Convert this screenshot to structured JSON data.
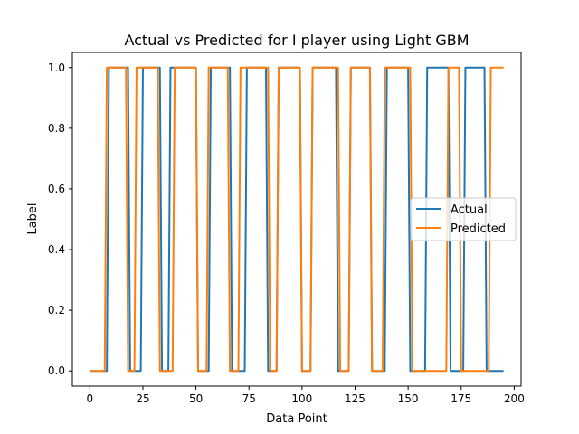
{
  "chart_data": {
    "type": "line",
    "title": "Actual vs Predicted for I player using Light GBM",
    "xlabel": "Data Point",
    "ylabel": "Label",
    "xlim": [
      -8.25,
      203.25
    ],
    "ylim": [
      -0.05,
      1.05
    ],
    "xticks": [
      0,
      25,
      50,
      75,
      100,
      125,
      150,
      175,
      200
    ],
    "yticks": [
      0.0,
      0.2,
      0.4,
      0.6,
      0.8,
      1.0
    ],
    "ytick_labels": [
      "0.0",
      "0.2",
      "0.4",
      "0.6",
      "0.8",
      "1.0"
    ],
    "grid": false,
    "legend_position": "center-right",
    "series": [
      {
        "name": "Actual",
        "color": "#1f77b4",
        "x": [
          0,
          8,
          9,
          18,
          19,
          24,
          25,
          33,
          34,
          37,
          38,
          50,
          51,
          56,
          57,
          66,
          67,
          73,
          74,
          83,
          84,
          88,
          89,
          99,
          100,
          104,
          105,
          116,
          117,
          122,
          123,
          132,
          133,
          139,
          140,
          150,
          151,
          158,
          159,
          169,
          170,
          176,
          177,
          186,
          187,
          195
        ],
        "y": [
          0,
          0,
          1,
          1,
          0,
          0,
          1,
          1,
          0,
          0,
          1,
          1,
          0,
          0,
          1,
          1,
          0,
          0,
          1,
          1,
          0,
          0,
          1,
          1,
          0,
          0,
          1,
          1,
          0,
          0,
          1,
          1,
          0,
          0,
          1,
          1,
          0,
          0,
          1,
          1,
          0,
          0,
          1,
          1,
          0,
          0
        ]
      },
      {
        "name": "Predicted",
        "color": "#ff7f0e",
        "x": [
          0,
          7,
          8,
          17,
          18,
          21,
          22,
          32,
          33,
          39,
          40,
          50,
          51,
          55,
          56,
          65,
          66,
          70,
          71,
          84,
          85,
          88,
          89,
          99,
          100,
          104,
          105,
          117,
          118,
          122,
          123,
          132,
          133,
          138,
          139,
          151,
          152,
          168,
          169,
          174,
          175,
          188,
          189,
          195
        ],
        "y": [
          0,
          0,
          1,
          1,
          0,
          0,
          1,
          1,
          0,
          0,
          1,
          1,
          0,
          0,
          1,
          1,
          0,
          0,
          1,
          1,
          0,
          0,
          1,
          1,
          0,
          0,
          1,
          1,
          0,
          0,
          1,
          1,
          0,
          0,
          1,
          1,
          0,
          0,
          1,
          1,
          0,
          0,
          1,
          1
        ]
      }
    ]
  }
}
